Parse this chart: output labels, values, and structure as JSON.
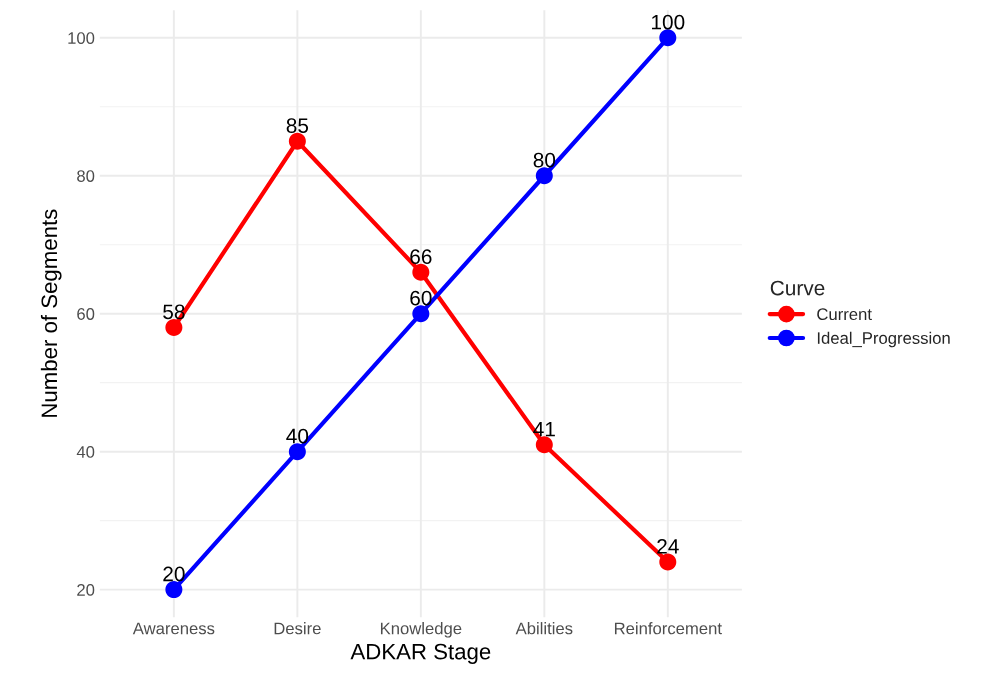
{
  "chart_data": {
    "type": "line",
    "xlabel": "ADKAR Stage",
    "ylabel": "Number of Segments",
    "legend_title": "Curve",
    "categories": [
      "Awareness",
      "Desire",
      "Knowledge",
      "Abilities",
      "Reinforcement"
    ],
    "series": [
      {
        "name": "Current",
        "color": "#ff0000",
        "values": [
          58,
          85,
          66,
          41,
          24
        ]
      },
      {
        "name": "Ideal_Progression",
        "color": "#0000ff",
        "values": [
          20,
          40,
          60,
          80,
          100
        ]
      }
    ],
    "ylim": [
      16,
      104
    ],
    "yticks": [
      20,
      40,
      60,
      80,
      100
    ],
    "grid": true,
    "legend": "right",
    "marker": "circle",
    "line_style": "solid",
    "data_labels": true
  }
}
